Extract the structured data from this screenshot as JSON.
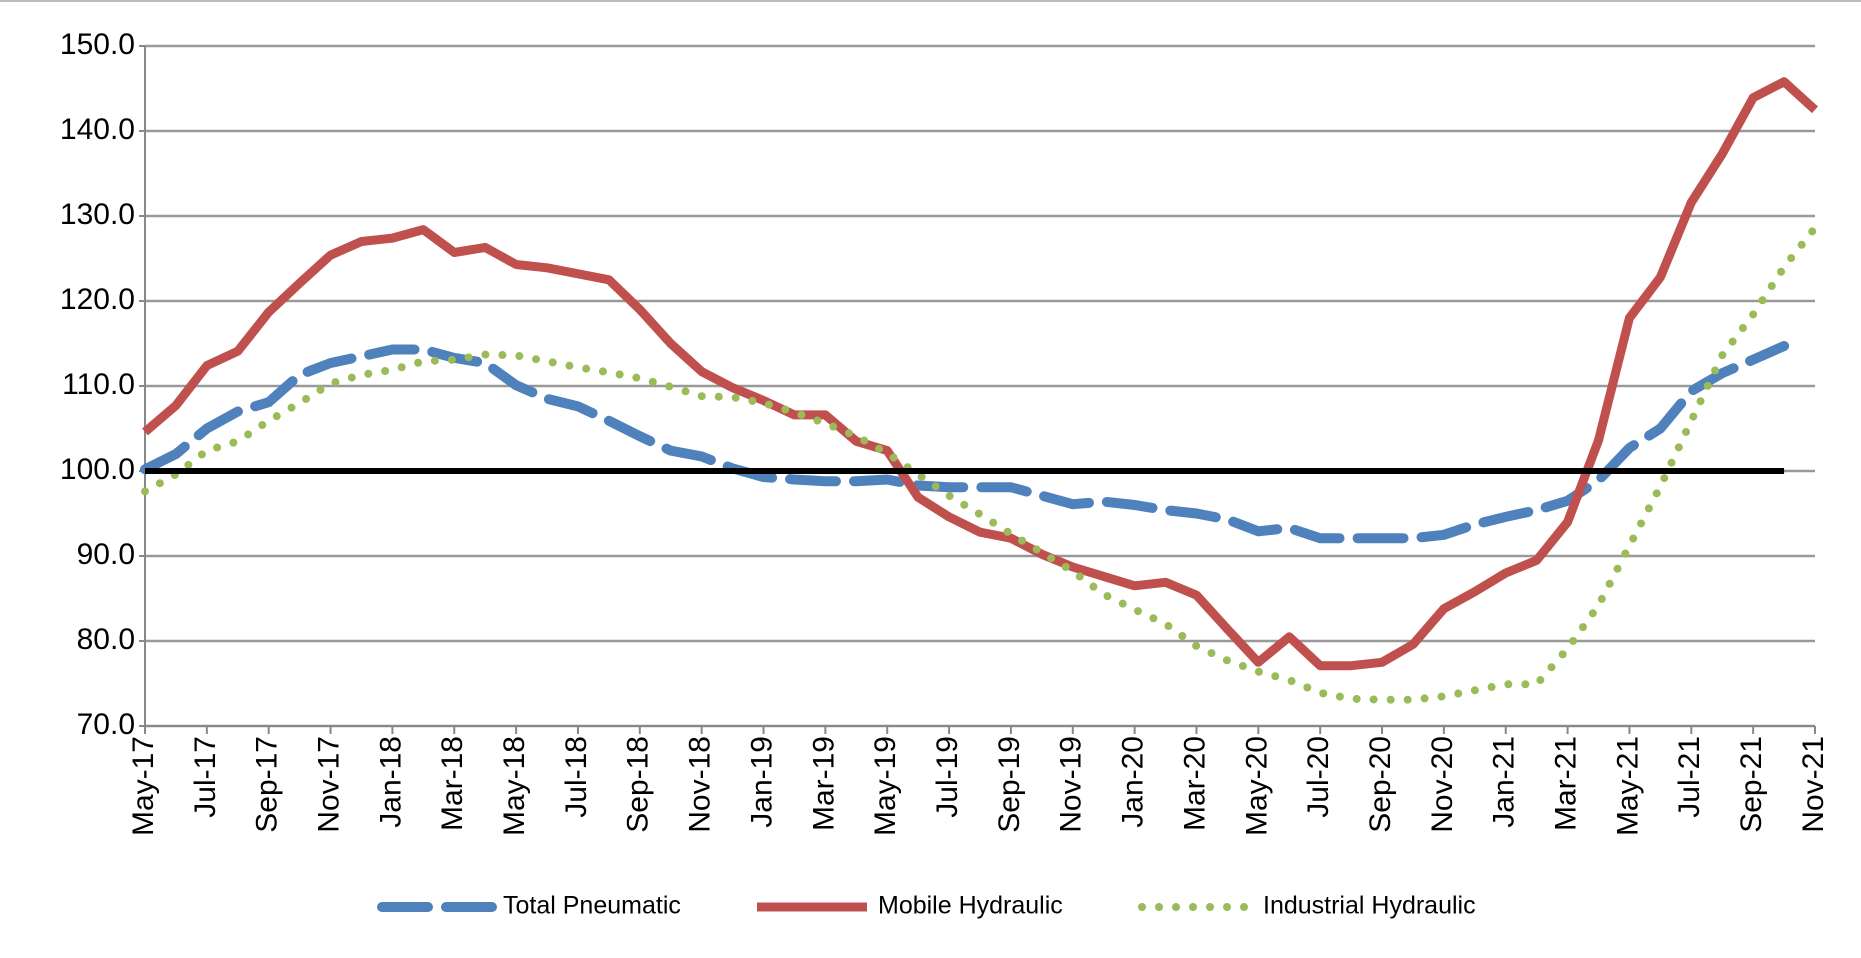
{
  "chart_data": {
    "type": "line",
    "categories": [
      "May-17",
      null,
      "Jul-17",
      null,
      "Sep-17",
      null,
      "Nov-17",
      null,
      "Jan-18",
      null,
      "Mar-18",
      null,
      "May-18",
      null,
      "Jul-18",
      null,
      "Sep-18",
      null,
      "Nov-18",
      null,
      "Jan-19",
      null,
      "Mar-19",
      null,
      "May-19",
      null,
      "Jul-19",
      null,
      "Sep-19",
      null,
      "Nov-19",
      null,
      "Jan-20",
      null,
      "Mar-20",
      null,
      "May-20",
      null,
      "Jul-20",
      null,
      "Sep-20",
      null,
      "Nov-20",
      null,
      "Jan-21",
      null,
      "Mar-21",
      null,
      "May-21",
      null,
      "Jul-21",
      null,
      "Sep-21",
      null,
      "Nov-21"
    ],
    "series": [
      {
        "name": "Total Pneumatic",
        "color": "#4f81bd",
        "style": "dashed",
        "values": [
          100.2,
          102.0,
          105.0,
          107.0,
          108.1,
          111.3,
          112.7,
          113.5,
          114.3,
          114.3,
          113.3,
          112.7,
          110.1,
          108.5,
          107.6,
          105.9,
          104.1,
          102.4,
          101.7,
          100.3,
          99.3,
          99.0,
          98.8,
          98.8,
          99.0,
          98.3,
          98.1,
          98.1,
          98.1,
          97.1,
          96.1,
          96.4,
          96.0,
          95.4,
          95.0,
          94.3,
          92.9,
          93.3,
          92.1,
          92.1,
          92.1,
          92.1,
          92.5,
          93.7,
          94.6,
          95.4,
          96.5,
          98.9,
          102.7,
          105.0,
          109.4,
          111.5,
          113.1,
          114.7,
          null
        ]
      },
      {
        "name": "Mobile Hydraulic",
        "color": "#c0504d",
        "style": "solid",
        "values": [
          104.6,
          107.7,
          112.4,
          114.1,
          118.7,
          122.1,
          125.4,
          127.0,
          127.4,
          128.4,
          125.7,
          126.3,
          124.3,
          123.9,
          123.2,
          122.5,
          119.0,
          115.0,
          111.7,
          109.8,
          108.3,
          106.6,
          106.6,
          103.5,
          102.4,
          96.9,
          94.6,
          92.8,
          92.1,
          90.2,
          88.7,
          87.6,
          86.5,
          86.9,
          85.4,
          81.4,
          77.5,
          80.5,
          77.1,
          77.1,
          77.5,
          79.6,
          83.8,
          85.8,
          88.0,
          89.5,
          94.0,
          103.6,
          118.0,
          122.8,
          131.6,
          137.3,
          143.9,
          145.8,
          142.5
        ]
      },
      {
        "name": "Industrial Hydraulic",
        "color": "#9bbb59",
        "style": "dotted",
        "values": [
          97.6,
          99.6,
          102.4,
          103.5,
          105.9,
          108.0,
          110.3,
          111.3,
          111.9,
          112.9,
          113.1,
          113.7,
          113.6,
          112.9,
          112.2,
          111.6,
          110.9,
          109.9,
          108.8,
          108.7,
          108.0,
          106.9,
          105.6,
          104.1,
          102.1,
          99.6,
          97.1,
          94.9,
          92.6,
          90.4,
          88.2,
          85.5,
          83.7,
          82.0,
          79.4,
          77.7,
          76.4,
          75.4,
          73.9,
          73.2,
          73.1,
          73.1,
          73.5,
          74.2,
          74.9,
          74.9,
          79.1,
          84.2,
          91.2,
          98.2,
          105.9,
          113.6,
          118.4,
          124.0,
          128.6
        ]
      }
    ],
    "reference_line": 100,
    "ylim": [
      70,
      150
    ],
    "yticks": [
      {
        "value": 70,
        "label": "70.0"
      },
      {
        "value": 80,
        "label": "80.0"
      },
      {
        "value": 90,
        "label": "90.0"
      },
      {
        "value": 100,
        "label": "100.0"
      },
      {
        "value": 110,
        "label": "110.0"
      },
      {
        "value": 120,
        "label": "120.0"
      },
      {
        "value": 130,
        "label": "130.0"
      },
      {
        "value": 140,
        "label": "140.0"
      },
      {
        "value": 150,
        "label": "150.0"
      }
    ],
    "grid": true,
    "legend": "bottom"
  }
}
